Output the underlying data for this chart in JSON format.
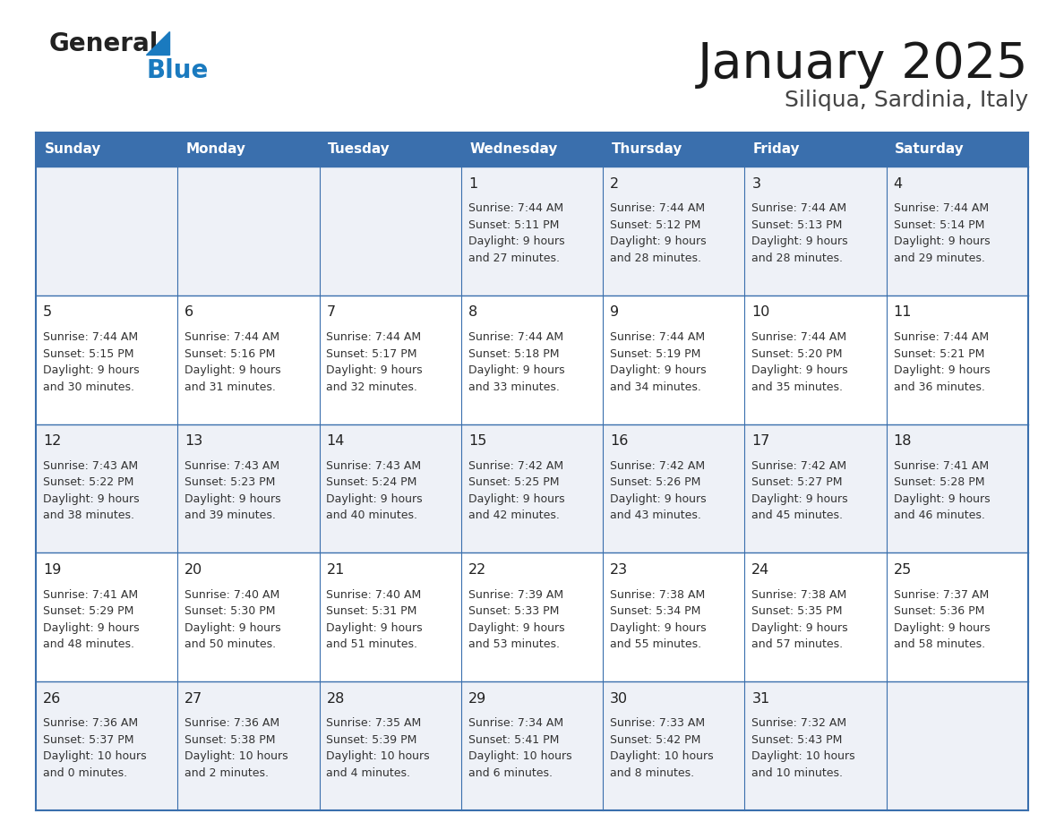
{
  "title": "January 2025",
  "subtitle": "Siliqua, Sardinia, Italy",
  "days_of_week": [
    "Sunday",
    "Monday",
    "Tuesday",
    "Wednesday",
    "Thursday",
    "Friday",
    "Saturday"
  ],
  "header_bg": "#3a6fad",
  "header_text": "#FFFFFF",
  "row_bg_odd": "#eef1f7",
  "row_bg_even": "#FFFFFF",
  "border_color": "#3a6fad",
  "text_color": "#333333",
  "day_num_color": "#222222",
  "logo_black": "#222222",
  "logo_blue": "#1a7abf",
  "triangle_color": "#1a7abf",
  "weeks": [
    [
      {
        "day": 0,
        "info": ""
      },
      {
        "day": 0,
        "info": ""
      },
      {
        "day": 0,
        "info": ""
      },
      {
        "day": 1,
        "info": "Sunrise: 7:44 AM\nSunset: 5:11 PM\nDaylight: 9 hours\nand 27 minutes."
      },
      {
        "day": 2,
        "info": "Sunrise: 7:44 AM\nSunset: 5:12 PM\nDaylight: 9 hours\nand 28 minutes."
      },
      {
        "day": 3,
        "info": "Sunrise: 7:44 AM\nSunset: 5:13 PM\nDaylight: 9 hours\nand 28 minutes."
      },
      {
        "day": 4,
        "info": "Sunrise: 7:44 AM\nSunset: 5:14 PM\nDaylight: 9 hours\nand 29 minutes."
      }
    ],
    [
      {
        "day": 5,
        "info": "Sunrise: 7:44 AM\nSunset: 5:15 PM\nDaylight: 9 hours\nand 30 minutes."
      },
      {
        "day": 6,
        "info": "Sunrise: 7:44 AM\nSunset: 5:16 PM\nDaylight: 9 hours\nand 31 minutes."
      },
      {
        "day": 7,
        "info": "Sunrise: 7:44 AM\nSunset: 5:17 PM\nDaylight: 9 hours\nand 32 minutes."
      },
      {
        "day": 8,
        "info": "Sunrise: 7:44 AM\nSunset: 5:18 PM\nDaylight: 9 hours\nand 33 minutes."
      },
      {
        "day": 9,
        "info": "Sunrise: 7:44 AM\nSunset: 5:19 PM\nDaylight: 9 hours\nand 34 minutes."
      },
      {
        "day": 10,
        "info": "Sunrise: 7:44 AM\nSunset: 5:20 PM\nDaylight: 9 hours\nand 35 minutes."
      },
      {
        "day": 11,
        "info": "Sunrise: 7:44 AM\nSunset: 5:21 PM\nDaylight: 9 hours\nand 36 minutes."
      }
    ],
    [
      {
        "day": 12,
        "info": "Sunrise: 7:43 AM\nSunset: 5:22 PM\nDaylight: 9 hours\nand 38 minutes."
      },
      {
        "day": 13,
        "info": "Sunrise: 7:43 AM\nSunset: 5:23 PM\nDaylight: 9 hours\nand 39 minutes."
      },
      {
        "day": 14,
        "info": "Sunrise: 7:43 AM\nSunset: 5:24 PM\nDaylight: 9 hours\nand 40 minutes."
      },
      {
        "day": 15,
        "info": "Sunrise: 7:42 AM\nSunset: 5:25 PM\nDaylight: 9 hours\nand 42 minutes."
      },
      {
        "day": 16,
        "info": "Sunrise: 7:42 AM\nSunset: 5:26 PM\nDaylight: 9 hours\nand 43 minutes."
      },
      {
        "day": 17,
        "info": "Sunrise: 7:42 AM\nSunset: 5:27 PM\nDaylight: 9 hours\nand 45 minutes."
      },
      {
        "day": 18,
        "info": "Sunrise: 7:41 AM\nSunset: 5:28 PM\nDaylight: 9 hours\nand 46 minutes."
      }
    ],
    [
      {
        "day": 19,
        "info": "Sunrise: 7:41 AM\nSunset: 5:29 PM\nDaylight: 9 hours\nand 48 minutes."
      },
      {
        "day": 20,
        "info": "Sunrise: 7:40 AM\nSunset: 5:30 PM\nDaylight: 9 hours\nand 50 minutes."
      },
      {
        "day": 21,
        "info": "Sunrise: 7:40 AM\nSunset: 5:31 PM\nDaylight: 9 hours\nand 51 minutes."
      },
      {
        "day": 22,
        "info": "Sunrise: 7:39 AM\nSunset: 5:33 PM\nDaylight: 9 hours\nand 53 minutes."
      },
      {
        "day": 23,
        "info": "Sunrise: 7:38 AM\nSunset: 5:34 PM\nDaylight: 9 hours\nand 55 minutes."
      },
      {
        "day": 24,
        "info": "Sunrise: 7:38 AM\nSunset: 5:35 PM\nDaylight: 9 hours\nand 57 minutes."
      },
      {
        "day": 25,
        "info": "Sunrise: 7:37 AM\nSunset: 5:36 PM\nDaylight: 9 hours\nand 58 minutes."
      }
    ],
    [
      {
        "day": 26,
        "info": "Sunrise: 7:36 AM\nSunset: 5:37 PM\nDaylight: 10 hours\nand 0 minutes."
      },
      {
        "day": 27,
        "info": "Sunrise: 7:36 AM\nSunset: 5:38 PM\nDaylight: 10 hours\nand 2 minutes."
      },
      {
        "day": 28,
        "info": "Sunrise: 7:35 AM\nSunset: 5:39 PM\nDaylight: 10 hours\nand 4 minutes."
      },
      {
        "day": 29,
        "info": "Sunrise: 7:34 AM\nSunset: 5:41 PM\nDaylight: 10 hours\nand 6 minutes."
      },
      {
        "day": 30,
        "info": "Sunrise: 7:33 AM\nSunset: 5:42 PM\nDaylight: 10 hours\nand 8 minutes."
      },
      {
        "day": 31,
        "info": "Sunrise: 7:32 AM\nSunset: 5:43 PM\nDaylight: 10 hours\nand 10 minutes."
      },
      {
        "day": 0,
        "info": ""
      }
    ]
  ]
}
